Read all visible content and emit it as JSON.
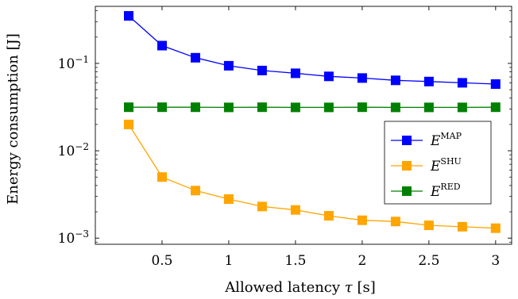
{
  "chart_data": {
    "type": "line",
    "xlabel": "Allowed latency",
    "xlabel_symbol": "τ",
    "xlabel_unit": "[s]",
    "ylabel": "Energy consumption [J]",
    "yscale": "log",
    "ylim": [
      0.00085,
      0.45
    ],
    "xlim": [
      0.0,
      3.12
    ],
    "grid": false,
    "legend_position": "right",
    "x_ticks": [
      0.5,
      1,
      1.5,
      2,
      2.5,
      3
    ],
    "x_tick_labels": [
      "0.5",
      "1",
      "1.5",
      "2",
      "2.5",
      "3"
    ],
    "y_ticks": [
      0.001,
      0.01,
      0.1
    ],
    "y_tick_labels": [
      {
        "base": "10",
        "exp": "−3"
      },
      {
        "base": "10",
        "exp": "−2"
      },
      {
        "base": "10",
        "exp": "−1"
      }
    ],
    "x": [
      0.25,
      0.5,
      0.75,
      1.0,
      1.25,
      1.5,
      1.75,
      2.0,
      2.25,
      2.5,
      2.75,
      3.0
    ],
    "series": [
      {
        "name": "E",
        "superscript": "MAP",
        "color": "#0000ff",
        "values": [
          0.35,
          0.16,
          0.116,
          0.094,
          0.083,
          0.077,
          0.071,
          0.068,
          0.064,
          0.062,
          0.06,
          0.058
        ]
      },
      {
        "name": "E",
        "superscript": "SHU",
        "color": "#ffa500",
        "values": [
          0.02,
          0.005,
          0.0035,
          0.0028,
          0.0023,
          0.0021,
          0.0018,
          0.0016,
          0.00155,
          0.0014,
          0.00135,
          0.0013
        ]
      },
      {
        "name": "E",
        "superscript": "RED",
        "color": "#008000",
        "values": [
          0.0315,
          0.0315,
          0.0315,
          0.0314,
          0.0315,
          0.0314,
          0.0314,
          0.0315,
          0.0314,
          0.0314,
          0.0314,
          0.0315
        ]
      }
    ]
  }
}
